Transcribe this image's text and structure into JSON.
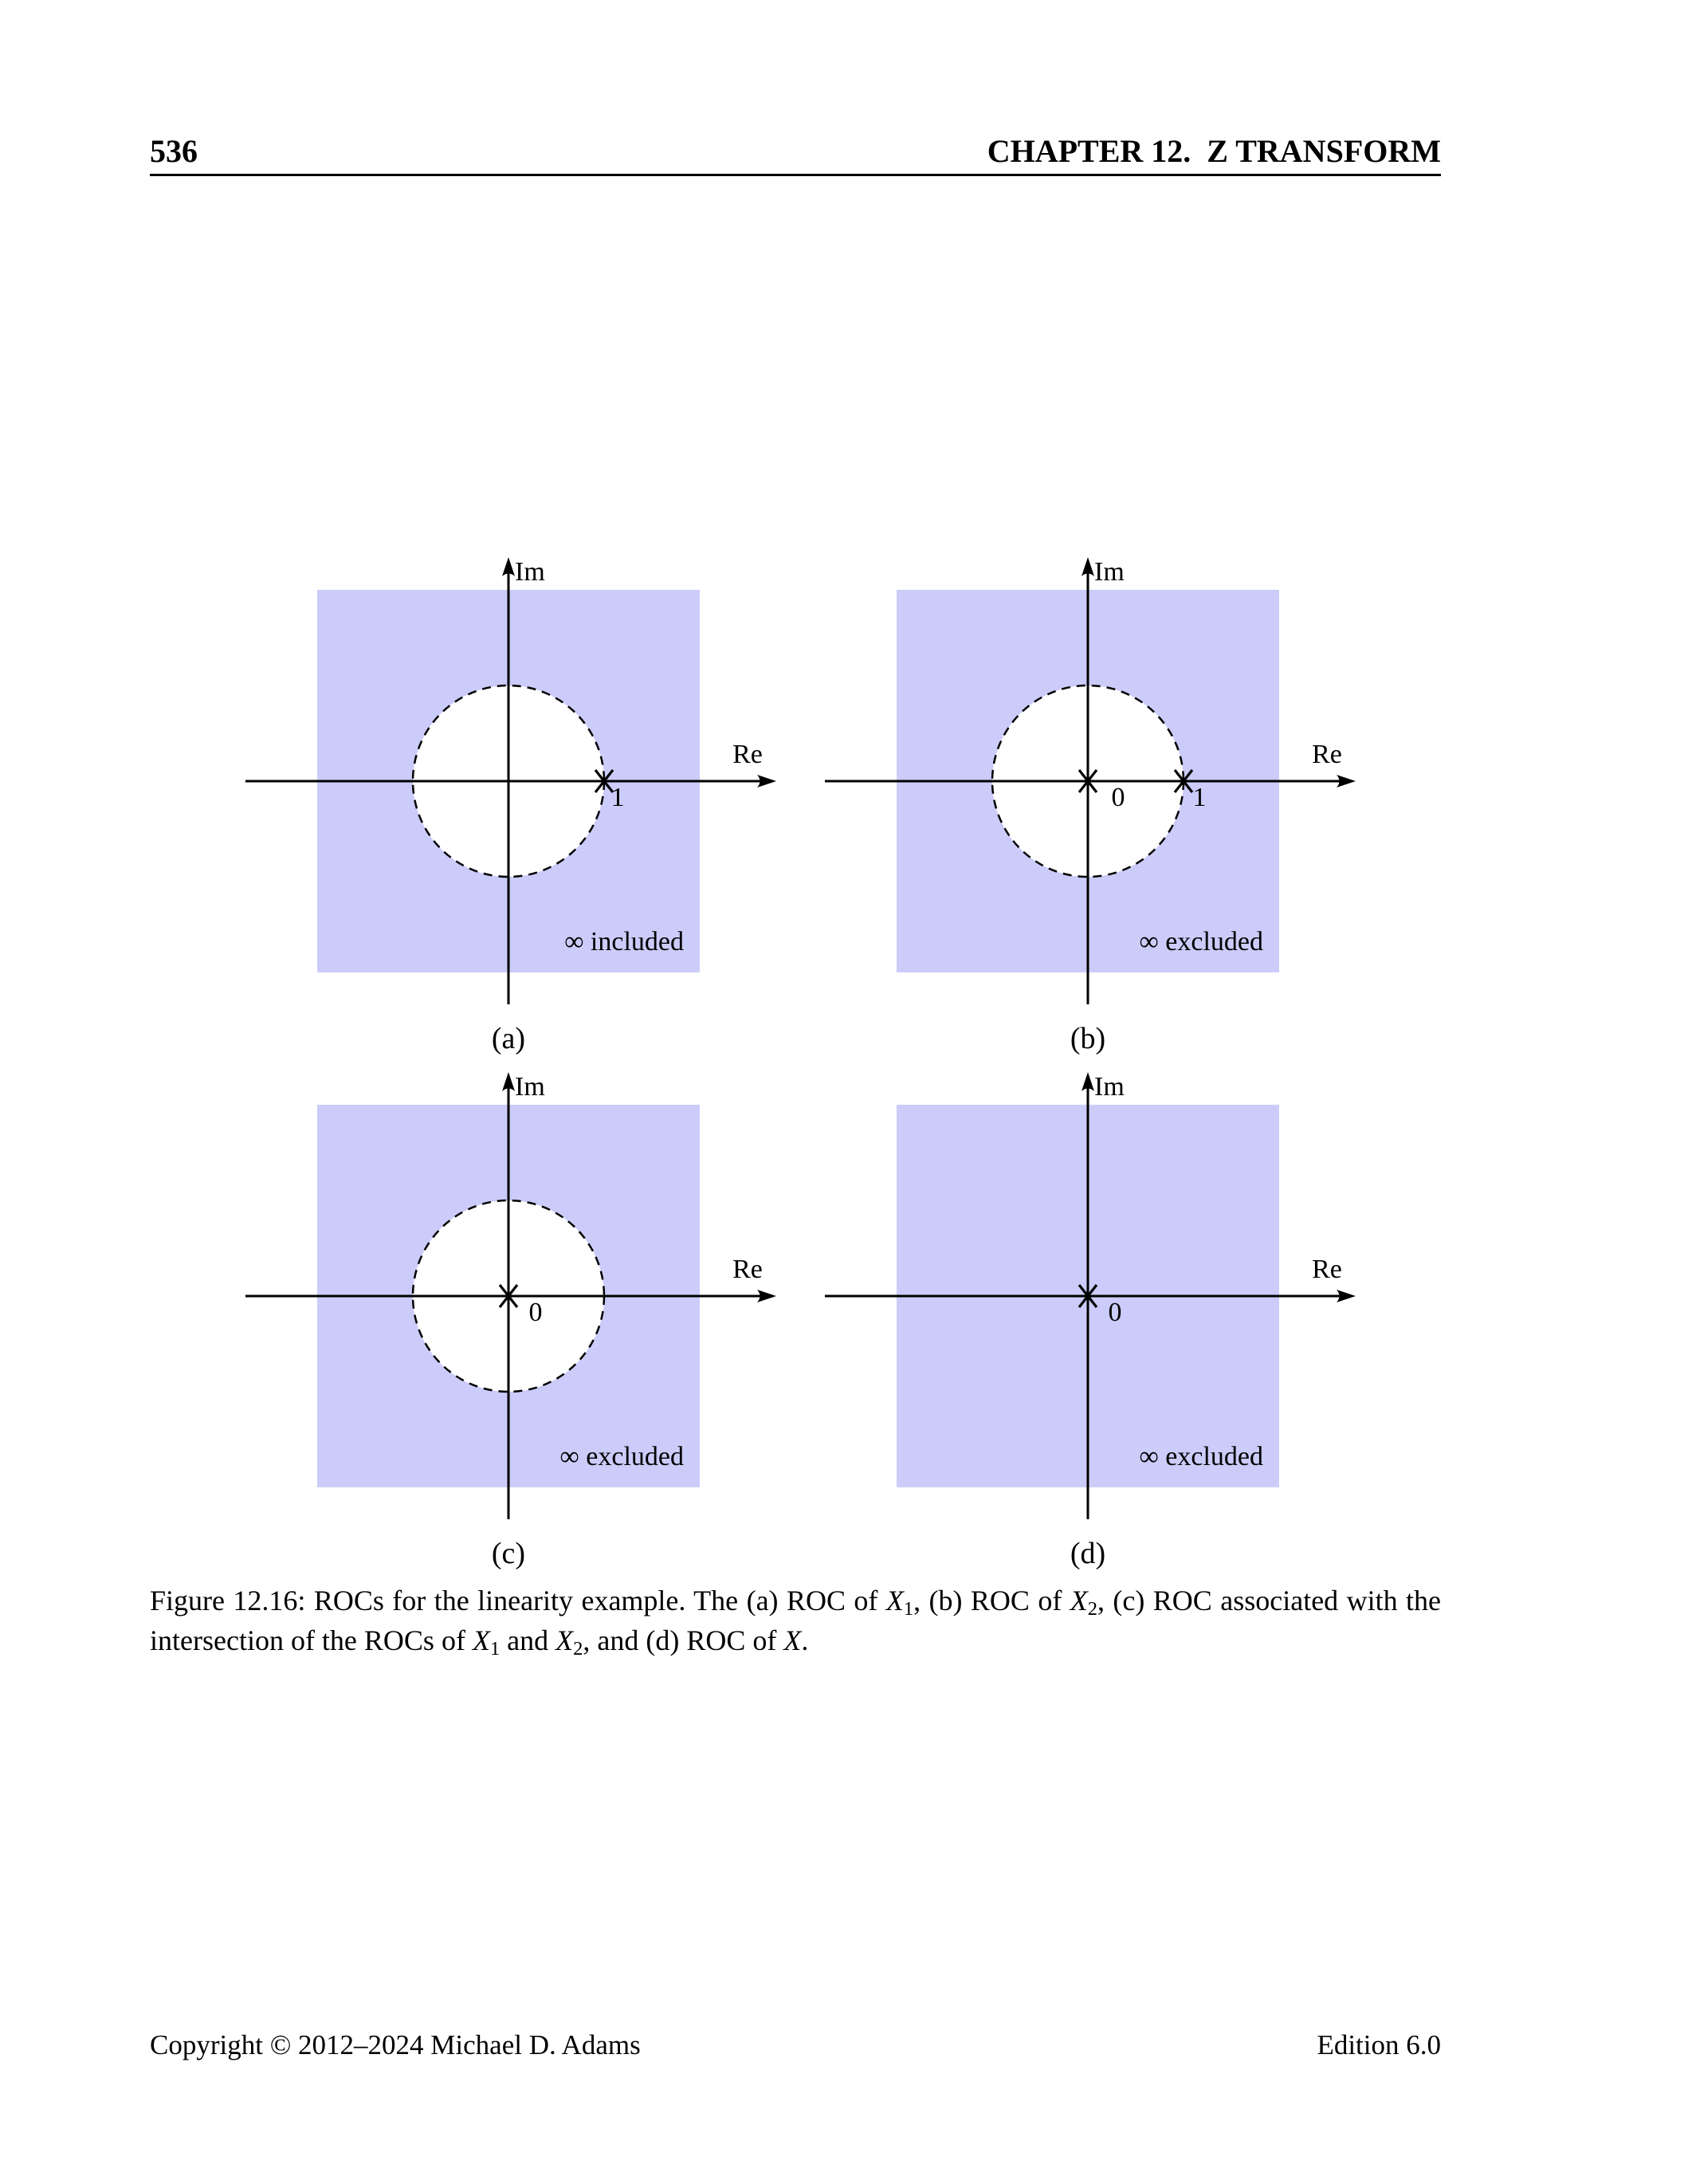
{
  "colors": {
    "roc_fill": "#ccccfa",
    "line_color": "#000000"
  },
  "header": {
    "page_number": "536",
    "chapter_title": "CHAPTER 12.  Z TRANSFORM"
  },
  "figure": {
    "diagrams": [
      {
        "panel": "(a)",
        "im_axis_label": "Im",
        "re_axis_label": "Re",
        "pole_one_label": "1",
        "infinity_note": "∞ included"
      },
      {
        "panel": "(b)",
        "im_axis_label": "Im",
        "re_axis_label": "Re",
        "origin_label": "0",
        "pole_one_label": "1",
        "infinity_note": "∞ excluded"
      },
      {
        "panel": "(c)",
        "im_axis_label": "Im",
        "re_axis_label": "Re",
        "origin_label": "0",
        "infinity_note": "∞ excluded"
      },
      {
        "panel": "(d)",
        "im_axis_label": "Im",
        "re_axis_label": "Re",
        "origin_label": "0",
        "infinity_note": "∞ excluded"
      }
    ],
    "caption_segments": [
      {
        "t": "Figure 12.16:  ROCs for the linearity example.  The (a) ROC of "
      },
      {
        "t": "X",
        "s": "i"
      },
      {
        "t": "1",
        "s": "sub"
      },
      {
        "t": ", (b) ROC of "
      },
      {
        "t": "X",
        "s": "i"
      },
      {
        "t": "2",
        "s": "sub"
      },
      {
        "t": ", (c) ROC associated with the intersection of the ROCs of "
      },
      {
        "t": "X",
        "s": "i"
      },
      {
        "t": "1",
        "s": "sub"
      },
      {
        "t": " and "
      },
      {
        "t": "X",
        "s": "i"
      },
      {
        "t": "2",
        "s": "sub"
      },
      {
        "t": ", and (d) ROC of "
      },
      {
        "t": "X",
        "s": "i"
      },
      {
        "t": "."
      }
    ]
  },
  "footer": {
    "left": "Copyright © 2012–2024 Michael D. Adams",
    "right": "Edition 6.0"
  }
}
